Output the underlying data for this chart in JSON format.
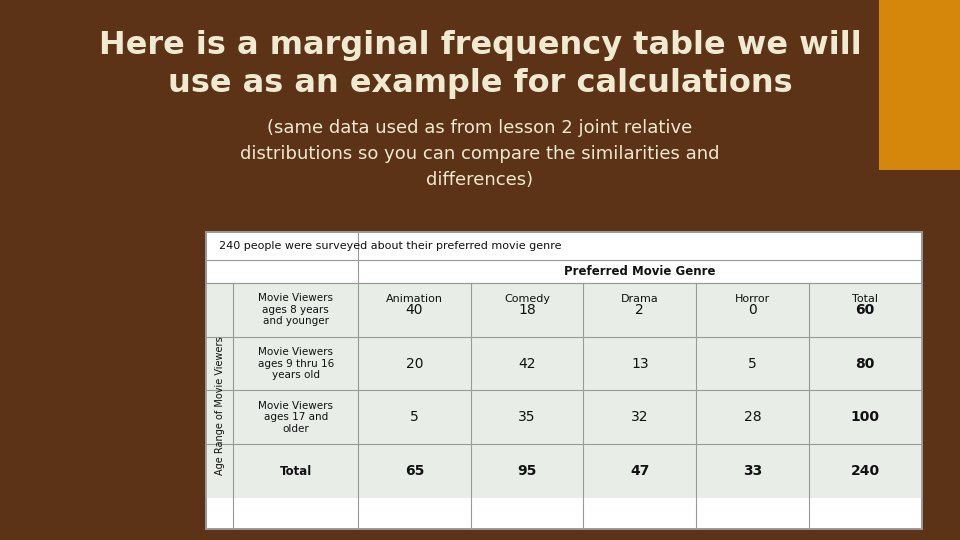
{
  "background_color": "#5c3317",
  "title_line1": "Here is a marginal frequency table we will",
  "title_line2": "use as an example for calculations",
  "subtitle_line1": "(same data used as from lesson 2 joint relative",
  "subtitle_line2": "distributions so you can compare the similarities and",
  "subtitle_line3": "differences)",
  "title_color": "#f0ead0",
  "subtitle_color": "#f0ead0",
  "orange_box_color": "#d4870a",
  "table_caption": "240 people were surveyed about their preferred movie genre",
  "col_header_main": "Preferred Movie Genre",
  "col_headers": [
    "Animation",
    "Comedy",
    "Drama",
    "Horror",
    "Total"
  ],
  "row_header_main": "Age Range of Movie Viewers",
  "row_headers": [
    "Movie Viewers\nages 8 years\nand younger",
    "Movie Viewers\nages 9 thru 16\nyears old",
    "Movie Viewers\nages 17 and\nolder",
    "Total"
  ],
  "data": [
    [
      40,
      18,
      2,
      0,
      60
    ],
    [
      20,
      42,
      13,
      5,
      80
    ],
    [
      5,
      35,
      32,
      28,
      100
    ],
    [
      65,
      95,
      47,
      33,
      240
    ]
  ],
  "table_bg": "#ffffff",
  "table_row_bg": "#e8ede8",
  "table_border": "#999999",
  "table_header_bg": "#e8ede8"
}
